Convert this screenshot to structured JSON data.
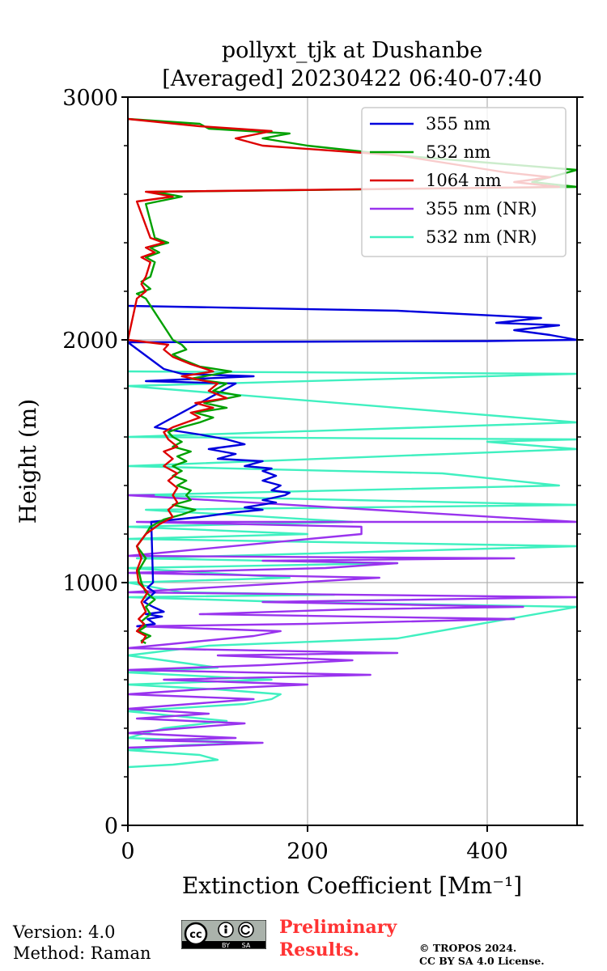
{
  "chart_data": {
    "type": "line",
    "title": [
      "pollyxt_tjk at Dushanbe",
      "[Averaged] 20230422 06:40-07:40"
    ],
    "xlabel": "Extinction Coefficient [Mm⁻¹]",
    "ylabel": "Height (m)",
    "xlim": [
      0,
      500
    ],
    "ylim": [
      0,
      3000
    ],
    "xticks": [
      0,
      200,
      400
    ],
    "yticks": [
      0,
      1000,
      2000,
      3000
    ],
    "xtick_labels": [
      "0",
      "200",
      "400"
    ],
    "ytick_labels": [
      "0",
      "1000",
      "2000",
      "3000"
    ],
    "grid": true,
    "legend_position": "top-right",
    "series": [
      {
        "name": "355 nm",
        "color": "#0000dd",
        "points": [
          [
            10,
            820
          ],
          [
            30,
            830
          ],
          [
            22,
            850
          ],
          [
            38,
            860
          ],
          [
            20,
            870
          ],
          [
            40,
            880
          ],
          [
            28,
            900
          ],
          [
            18,
            920
          ],
          [
            30,
            960
          ],
          [
            22,
            980
          ],
          [
            28,
            1000
          ],
          [
            26,
            1250
          ],
          [
            80,
            1270
          ],
          [
            120,
            1290
          ],
          [
            150,
            1300
          ],
          [
            130,
            1310
          ],
          [
            165,
            1330
          ],
          [
            150,
            1340
          ],
          [
            175,
            1360
          ],
          [
            180,
            1370
          ],
          [
            160,
            1380
          ],
          [
            170,
            1400
          ],
          [
            150,
            1420
          ],
          [
            165,
            1440
          ],
          [
            150,
            1460
          ],
          [
            160,
            1470
          ],
          [
            130,
            1480
          ],
          [
            150,
            1500
          ],
          [
            100,
            1510
          ],
          [
            120,
            1530
          ],
          [
            90,
            1550
          ],
          [
            130,
            1570
          ],
          [
            110,
            1590
          ],
          [
            80,
            1610
          ],
          [
            45,
            1630
          ],
          [
            30,
            1640
          ],
          [
            120,
            1820
          ],
          [
            20,
            1830
          ],
          [
            140,
            1850
          ],
          [
            60,
            1860
          ],
          [
            40,
            1880
          ],
          [
            0,
            1990
          ],
          [
            400,
            1995
          ],
          [
            500,
            2000
          ],
          [
            470,
            2020
          ],
          [
            430,
            2040
          ],
          [
            480,
            2060
          ],
          [
            410,
            2070
          ],
          [
            460,
            2090
          ],
          [
            300,
            2120
          ],
          [
            0,
            2140
          ]
        ]
      },
      {
        "name": "532 nm",
        "color": "#00a000",
        "points": [
          [
            20,
            750
          ],
          [
            15,
            760
          ],
          [
            25,
            780
          ],
          [
            12,
            800
          ],
          [
            20,
            820
          ],
          [
            15,
            840
          ],
          [
            25,
            870
          ],
          [
            20,
            900
          ],
          [
            30,
            930
          ],
          [
            20,
            960
          ],
          [
            15,
            1000
          ],
          [
            12,
            1050
          ],
          [
            20,
            1100
          ],
          [
            10,
            1150
          ],
          [
            20,
            1200
          ],
          [
            25,
            1230
          ],
          [
            40,
            1260
          ],
          [
            60,
            1280
          ],
          [
            75,
            1300
          ],
          [
            50,
            1320
          ],
          [
            70,
            1340
          ],
          [
            65,
            1360
          ],
          [
            70,
            1380
          ],
          [
            55,
            1400
          ],
          [
            65,
            1420
          ],
          [
            50,
            1440
          ],
          [
            60,
            1460
          ],
          [
            50,
            1480
          ],
          [
            65,
            1500
          ],
          [
            55,
            1520
          ],
          [
            70,
            1540
          ],
          [
            50,
            1560
          ],
          [
            60,
            1580
          ],
          [
            50,
            1600
          ],
          [
            45,
            1620
          ],
          [
            60,
            1640
          ],
          [
            80,
            1660
          ],
          [
            95,
            1680
          ],
          [
            75,
            1700
          ],
          [
            110,
            1720
          ],
          [
            85,
            1740
          ],
          [
            125,
            1770
          ],
          [
            95,
            1790
          ],
          [
            110,
            1820
          ],
          [
            70,
            1840
          ],
          [
            115,
            1870
          ],
          [
            80,
            1890
          ],
          [
            60,
            1920
          ],
          [
            50,
            1940
          ],
          [
            65,
            1960
          ],
          [
            60,
            1980
          ],
          [
            50,
            2000
          ],
          [
            20,
            2170
          ],
          [
            10,
            2190
          ],
          [
            25,
            2210
          ],
          [
            15,
            2240
          ],
          [
            25,
            2260
          ],
          [
            30,
            2320
          ],
          [
            20,
            2340
          ],
          [
            35,
            2360
          ],
          [
            25,
            2380
          ],
          [
            45,
            2400
          ],
          [
            30,
            2420
          ],
          [
            20,
            2560
          ],
          [
            60,
            2590
          ],
          [
            30,
            2610
          ],
          [
            500,
            2630
          ],
          [
            450,
            2650
          ],
          [
            480,
            2680
          ],
          [
            500,
            2700
          ],
          [
            300,
            2760
          ],
          [
            200,
            2800
          ],
          [
            150,
            2830
          ],
          [
            180,
            2850
          ],
          [
            90,
            2870
          ],
          [
            80,
            2890
          ],
          [
            0,
            2910
          ]
        ]
      },
      {
        "name": "1064 nm",
        "color": "#dd0000",
        "points": [
          [
            15,
            750
          ],
          [
            20,
            780
          ],
          [
            10,
            800
          ],
          [
            18,
            830
          ],
          [
            12,
            850
          ],
          [
            20,
            880
          ],
          [
            15,
            920
          ],
          [
            22,
            960
          ],
          [
            12,
            1000
          ],
          [
            10,
            1050
          ],
          [
            15,
            1100
          ],
          [
            10,
            1150
          ],
          [
            20,
            1200
          ],
          [
            35,
            1240
          ],
          [
            50,
            1270
          ],
          [
            45,
            1300
          ],
          [
            55,
            1330
          ],
          [
            50,
            1360
          ],
          [
            55,
            1390
          ],
          [
            45,
            1420
          ],
          [
            55,
            1450
          ],
          [
            40,
            1480
          ],
          [
            50,
            1510
          ],
          [
            40,
            1540
          ],
          [
            55,
            1560
          ],
          [
            45,
            1590
          ],
          [
            40,
            1620
          ],
          [
            50,
            1640
          ],
          [
            65,
            1660
          ],
          [
            80,
            1680
          ],
          [
            70,
            1700
          ],
          [
            95,
            1720
          ],
          [
            75,
            1740
          ],
          [
            110,
            1760
          ],
          [
            90,
            1790
          ],
          [
            100,
            1820
          ],
          [
            60,
            1850
          ],
          [
            95,
            1870
          ],
          [
            70,
            1900
          ],
          [
            50,
            1930
          ],
          [
            40,
            1960
          ],
          [
            45,
            1980
          ],
          [
            0,
            2000
          ],
          [
            10,
            2170
          ],
          [
            20,
            2200
          ],
          [
            15,
            2230
          ],
          [
            20,
            2260
          ],
          [
            25,
            2320
          ],
          [
            15,
            2340
          ],
          [
            30,
            2360
          ],
          [
            20,
            2380
          ],
          [
            40,
            2400
          ],
          [
            25,
            2420
          ],
          [
            10,
            2570
          ],
          [
            50,
            2590
          ],
          [
            20,
            2610
          ],
          [
            480,
            2630
          ],
          [
            430,
            2650
          ],
          [
            470,
            2670
          ],
          [
            420,
            2690
          ],
          [
            300,
            2760
          ],
          [
            150,
            2800
          ],
          [
            120,
            2830
          ],
          [
            160,
            2860
          ],
          [
            80,
            2880
          ],
          [
            0,
            2910
          ]
        ]
      },
      {
        "name": "355 nm (NR)",
        "color": "#9933ee",
        "points": [
          [
            0,
            320
          ],
          [
            80,
            330
          ],
          [
            150,
            340
          ],
          [
            20,
            350
          ],
          [
            120,
            360
          ],
          [
            0,
            380
          ],
          [
            60,
            400
          ],
          [
            130,
            420
          ],
          [
            10,
            440
          ],
          [
            90,
            460
          ],
          [
            0,
            480
          ],
          [
            70,
            500
          ],
          [
            140,
            520
          ],
          [
            0,
            540
          ],
          [
            80,
            560
          ],
          [
            200,
            580
          ],
          [
            40,
            600
          ],
          [
            270,
            620
          ],
          [
            0,
            640
          ],
          [
            150,
            660
          ],
          [
            250,
            680
          ],
          [
            100,
            700
          ],
          [
            300,
            710
          ],
          [
            0,
            730
          ],
          [
            140,
            780
          ],
          [
            170,
            800
          ],
          [
            10,
            820
          ],
          [
            200,
            830
          ],
          [
            430,
            850
          ],
          [
            80,
            870
          ],
          [
            250,
            890
          ],
          [
            440,
            900
          ],
          [
            150,
            920
          ],
          [
            500,
            940
          ],
          [
            0,
            960
          ],
          [
            280,
            1020
          ],
          [
            0,
            1040
          ],
          [
            220,
            1060
          ],
          [
            300,
            1080
          ],
          [
            150,
            1090
          ],
          [
            430,
            1100
          ],
          [
            0,
            1110
          ],
          [
            260,
            1200
          ],
          [
            260,
            1230
          ],
          [
            10,
            1250
          ],
          [
            500,
            1250
          ],
          [
            0,
            1360
          ],
          [
            30,
            1360
          ]
        ]
      },
      {
        "name": "532 nm (NR)",
        "color": "#40f0c0",
        "points": [
          [
            0,
            240
          ],
          [
            50,
            250
          ],
          [
            100,
            270
          ],
          [
            80,
            290
          ],
          [
            0,
            310
          ],
          [
            60,
            330
          ],
          [
            140,
            340
          ],
          [
            0,
            360
          ],
          [
            40,
            400
          ],
          [
            110,
            430
          ],
          [
            0,
            470
          ],
          [
            130,
            500
          ],
          [
            160,
            520
          ],
          [
            170,
            540
          ],
          [
            100,
            560
          ],
          [
            0,
            580
          ],
          [
            160,
            600
          ],
          [
            0,
            630
          ],
          [
            100,
            650
          ],
          [
            0,
            700
          ],
          [
            90,
            740
          ],
          [
            300,
            770
          ],
          [
            500,
            900
          ],
          [
            180,
            920
          ],
          [
            0,
            940
          ],
          [
            230,
            950
          ],
          [
            60,
            960
          ],
          [
            0,
            1000
          ],
          [
            180,
            1020
          ],
          [
            0,
            1060
          ],
          [
            300,
            1080
          ],
          [
            10,
            1100
          ],
          [
            500,
            1150
          ],
          [
            0,
            1180
          ],
          [
            200,
            1200
          ],
          [
            0,
            1230
          ],
          [
            250,
            1250
          ],
          [
            20,
            1300
          ],
          [
            500,
            1320
          ],
          [
            250,
            1340
          ],
          [
            0,
            1360
          ],
          [
            480,
            1400
          ],
          [
            350,
            1450
          ],
          [
            0,
            1480
          ],
          [
            500,
            1550
          ],
          [
            400,
            1580
          ],
          [
            500,
            1590
          ],
          [
            0,
            1600
          ],
          [
            500,
            1660
          ],
          [
            0,
            1810
          ],
          [
            500,
            1860
          ],
          [
            0,
            1870
          ]
        ]
      }
    ]
  },
  "footer": {
    "version": "Version: 4.0",
    "method": "Method: Raman",
    "preliminary_line1": "Preliminary",
    "preliminary_line2": "Results.",
    "copyright_line1": "© TROPOS 2024.",
    "copyright_line2": "CC BY SA 4.0 License.",
    "cc_badge_text": [
      "cc",
      "BY",
      "SA"
    ]
  }
}
